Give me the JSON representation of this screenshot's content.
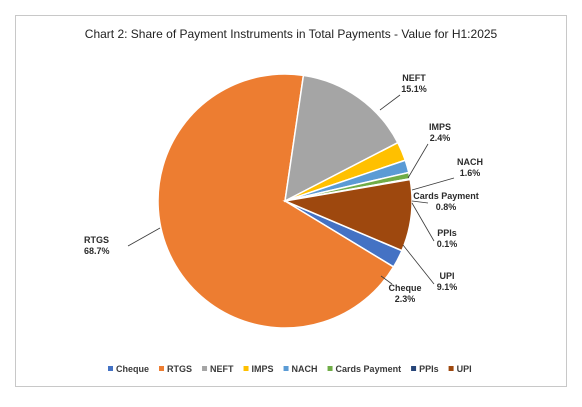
{
  "chart_data": {
    "type": "pie",
    "title": "Chart 2: Share of Payment Instruments in Total Payments - Value for H1:2025",
    "categories": [
      "Cheque",
      "RTGS",
      "NEFT",
      "IMPS",
      "NACH",
      "Cards Payment",
      "PPIs",
      "UPI"
    ],
    "values": [
      2.3,
      68.7,
      15.1,
      2.4,
      1.6,
      0.8,
      0.1,
      9.1
    ],
    "value_labels": [
      "2.3%",
      "68.7%",
      "15.1%",
      "2.4%",
      "1.6%",
      "0.8%",
      "0.1%",
      "9.1%"
    ],
    "colors": [
      "#4472C4",
      "#ED7D31",
      "#A5A5A5",
      "#FFC000",
      "#5B9BD5",
      "#70AD47",
      "#264478",
      "#9E480E"
    ],
    "legend_position": "bottom"
  }
}
